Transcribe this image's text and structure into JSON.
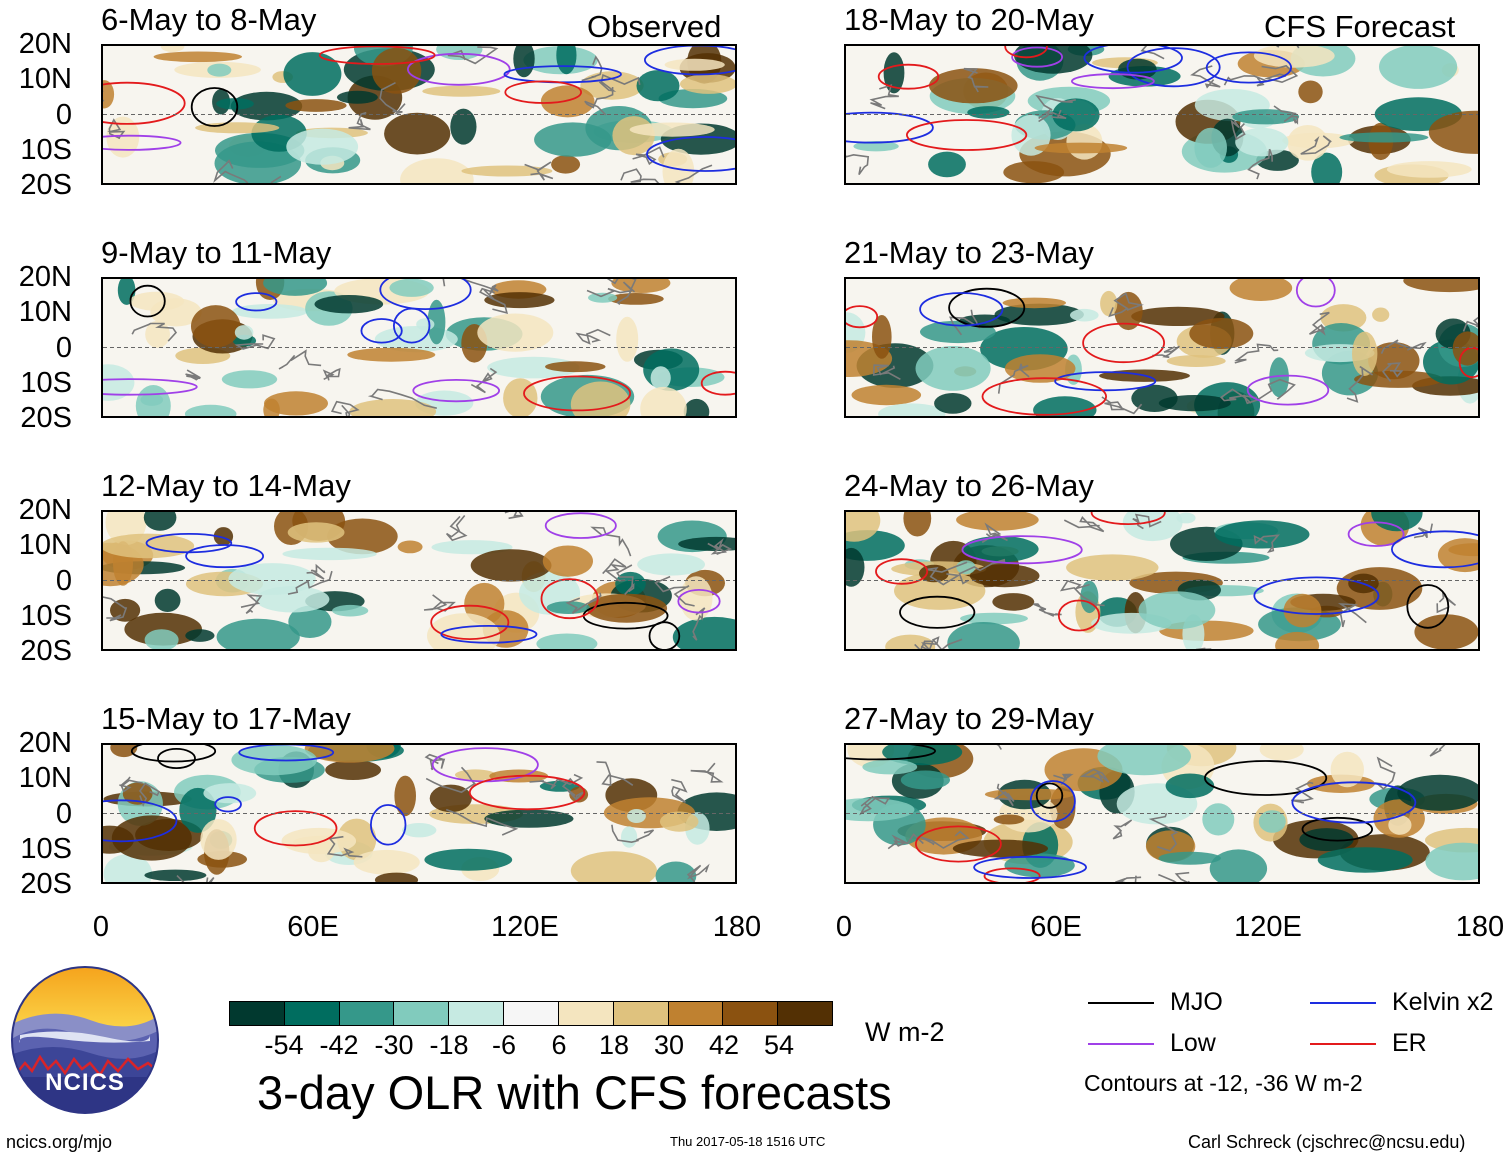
{
  "title": "3-day OLR with CFS forecasts",
  "units": "W m-2",
  "column_labels": {
    "observed": "Observed",
    "forecast": "CFS Forecast"
  },
  "lat_labels": [
    "20N",
    "10N",
    "0",
    "10S",
    "20S"
  ],
  "lon_labels": [
    "0",
    "60E",
    "120E",
    "180"
  ],
  "panels": [
    {
      "period": "6-May to 8-May",
      "type": "observed"
    },
    {
      "period": "9-May to 11-May",
      "type": "observed"
    },
    {
      "period": "12-May to 14-May",
      "type": "observed"
    },
    {
      "period": "15-May to 17-May",
      "type": "observed"
    },
    {
      "period": "18-May to 20-May",
      "type": "forecast"
    },
    {
      "period": "21-May to 23-May",
      "type": "forecast"
    },
    {
      "period": "24-May to 26-May",
      "type": "forecast"
    },
    {
      "period": "27-May to 29-May",
      "type": "forecast"
    }
  ],
  "colorbar": {
    "ticks": [
      "-54",
      "-42",
      "-30",
      "-18",
      "-6",
      "6",
      "18",
      "30",
      "42",
      "54"
    ],
    "colors": [
      "#01392f",
      "#006d5f",
      "#35988a",
      "#81cbbd",
      "#c6eae2",
      "#f6f6f6",
      "#f4e5bf",
      "#dfc27e",
      "#bf8130",
      "#8b5210",
      "#533004"
    ]
  },
  "legend": {
    "items": [
      {
        "label": "MJO",
        "color": "#000000"
      },
      {
        "label": "Kelvin x2",
        "color": "#1d2de0"
      },
      {
        "label": "Low",
        "color": "#a040e8"
      },
      {
        "label": "ER",
        "color": "#e31a1c"
      }
    ],
    "contours_note": "Contours at -12, -36 W m-2"
  },
  "logo_text": "NCICS",
  "footer": {
    "left": "ncics.org/mjo",
    "center": "Thu 2017-05-18 1516 UTC",
    "right": "Carl Schreck (cjschrec@ncsu.edu)"
  }
}
